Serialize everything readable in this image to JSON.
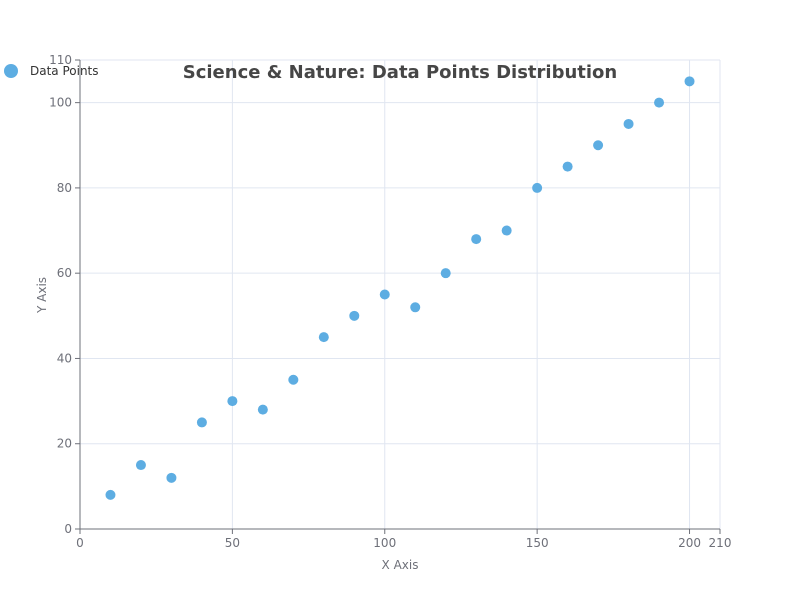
{
  "chart_data": {
    "type": "scatter",
    "title": "Science & Nature: Data Points Distribution",
    "xlabel": "X Axis",
    "ylabel": "Y Axis",
    "xlim": [
      0,
      210
    ],
    "ylim": [
      0,
      110
    ],
    "x_ticks": [
      "0",
      "50",
      "100",
      "150",
      "200",
      "210"
    ],
    "y_ticks": [
      "0",
      "20",
      "40",
      "60",
      "80",
      "100",
      "110"
    ],
    "x_tick_values": [
      0,
      50,
      100,
      150,
      200,
      210
    ],
    "y_tick_values": [
      0,
      20,
      40,
      60,
      80,
      100,
      110
    ],
    "grid": true,
    "legend_position": "top-left",
    "series": [
      {
        "name": "Data Points",
        "color": "#5dade2",
        "points": [
          {
            "x": 10,
            "y": 8
          },
          {
            "x": 20,
            "y": 15
          },
          {
            "x": 30,
            "y": 12
          },
          {
            "x": 40,
            "y": 25
          },
          {
            "x": 50,
            "y": 30
          },
          {
            "x": 60,
            "y": 28
          },
          {
            "x": 70,
            "y": 35
          },
          {
            "x": 80,
            "y": 45
          },
          {
            "x": 90,
            "y": 50
          },
          {
            "x": 100,
            "y": 55
          },
          {
            "x": 110,
            "y": 52
          },
          {
            "x": 120,
            "y": 60
          },
          {
            "x": 130,
            "y": 68
          },
          {
            "x": 140,
            "y": 70
          },
          {
            "x": 150,
            "y": 80
          },
          {
            "x": 160,
            "y": 85
          },
          {
            "x": 170,
            "y": 90
          },
          {
            "x": 180,
            "y": 95
          },
          {
            "x": 190,
            "y": 100
          },
          {
            "x": 200,
            "y": 105
          }
        ]
      }
    ]
  }
}
